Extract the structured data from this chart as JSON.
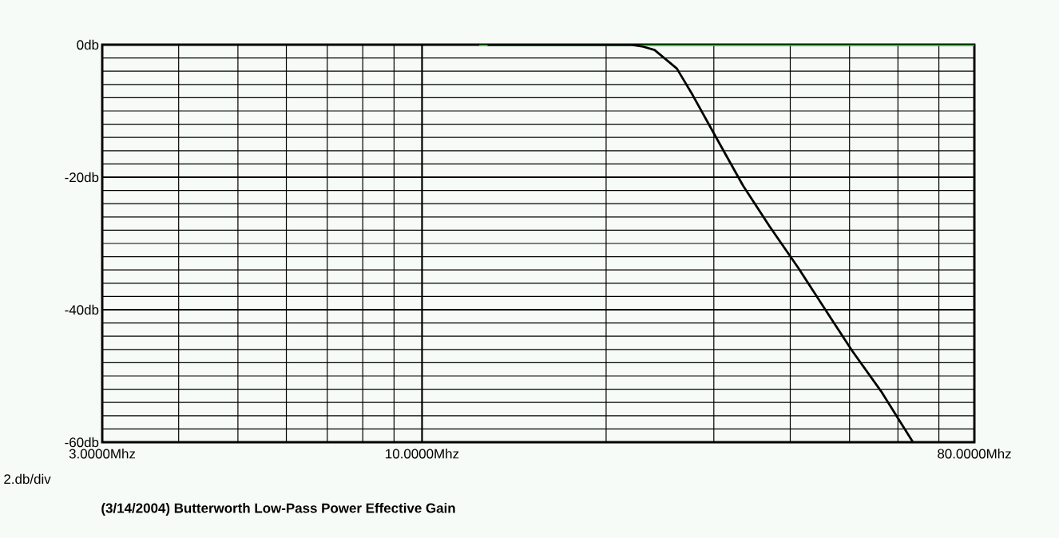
{
  "chart_data": {
    "type": "line",
    "title": "(3/14/2004) Butterworth Low-Pass Power Effective Gain",
    "annotations": [
      "2.db/div"
    ],
    "log": "x",
    "grid": true,
    "line_style": "solid",
    "xlim": [
      3,
      80
    ],
    "ylim": [
      -60,
      0
    ],
    "xticks": [
      {
        "value": 3,
        "label": "3.0000Mhz"
      },
      {
        "value": 4,
        "label": null
      },
      {
        "value": 5,
        "label": null
      },
      {
        "value": 6,
        "label": null
      },
      {
        "value": 7,
        "label": null
      },
      {
        "value": 8,
        "label": null
      },
      {
        "value": 9,
        "label": null
      },
      {
        "value": 10,
        "label": "10.0000Mhz"
      },
      {
        "value": 20,
        "label": null
      },
      {
        "value": 30,
        "label": null
      },
      {
        "value": 40,
        "label": null
      },
      {
        "value": 50,
        "label": null
      },
      {
        "value": 60,
        "label": null
      },
      {
        "value": 70,
        "label": null
      },
      {
        "value": 80,
        "label": "80.0000Mhz"
      }
    ],
    "yticks": [
      {
        "value": 0,
        "label": "0db"
      },
      {
        "value": -2,
        "label": null
      },
      {
        "value": -4,
        "label": null
      },
      {
        "value": -6,
        "label": null
      },
      {
        "value": -8,
        "label": null
      },
      {
        "value": -10,
        "label": null
      },
      {
        "value": -12,
        "label": null
      },
      {
        "value": -14,
        "label": null
      },
      {
        "value": -16,
        "label": null
      },
      {
        "value": -18,
        "label": null
      },
      {
        "value": -20,
        "label": "-20db"
      },
      {
        "value": -22,
        "label": null
      },
      {
        "value": -24,
        "label": null
      },
      {
        "value": -26,
        "label": null
      },
      {
        "value": -28,
        "label": null
      },
      {
        "value": -30,
        "label": null
      },
      {
        "value": -32,
        "label": null
      },
      {
        "value": -34,
        "label": null
      },
      {
        "value": -36,
        "label": null
      },
      {
        "value": -38,
        "label": null
      },
      {
        "value": -40,
        "label": "-40db"
      },
      {
        "value": -42,
        "label": null
      },
      {
        "value": -44,
        "label": null
      },
      {
        "value": -46,
        "label": null
      },
      {
        "value": -48,
        "label": null
      },
      {
        "value": -50,
        "label": null
      },
      {
        "value": -52,
        "label": null
      },
      {
        "value": -54,
        "label": null
      },
      {
        "value": -56,
        "label": null
      },
      {
        "value": -58,
        "label": null
      },
      {
        "value": -60,
        "label": "-60db"
      }
    ],
    "series": [
      {
        "color": "#33cc33",
        "x": [
          12.4,
          80
        ],
        "values": [
          0,
          0
        ]
      },
      {
        "color": "#000000",
        "x": [
          12.8,
          18,
          21,
          22,
          23,
          24,
          26.1,
          27.7,
          30.3,
          33.5,
          37,
          41.3,
          46.1,
          50.5,
          56.3,
          63.5
        ],
        "values": [
          0,
          0,
          0,
          0,
          -0.3,
          -0.8,
          -3.6,
          -7.6,
          -14.1,
          -21.3,
          -27.4,
          -33.8,
          -40.6,
          -46.2,
          -52.3,
          -60
        ]
      }
    ]
  }
}
